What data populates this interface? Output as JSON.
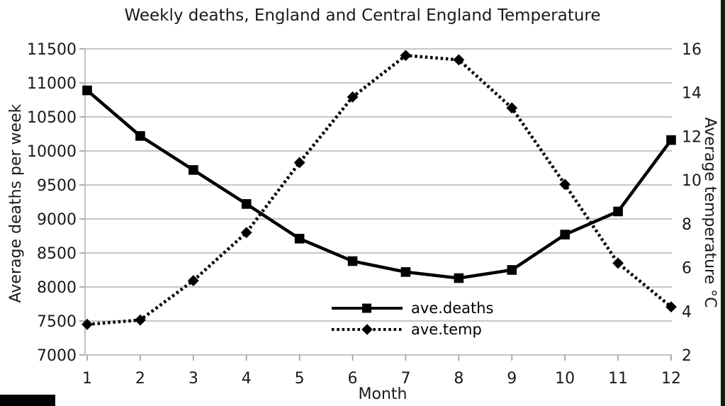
{
  "title": "Weekly deaths, England and Central England Temperature",
  "chart_data": {
    "type": "line",
    "title": "Weekly deaths, England and Central England Temperature",
    "xlabel": "Month",
    "ylabel_left": "Average deaths per week",
    "ylabel_right": "Average temperature °C",
    "x": [
      1,
      2,
      3,
      4,
      5,
      6,
      7,
      8,
      9,
      10,
      11,
      12
    ],
    "x_tick_labels": [
      "1",
      "2",
      "3",
      "4",
      "5",
      "6",
      "7",
      "8",
      "9",
      "10",
      "11",
      "12"
    ],
    "series": [
      {
        "name": "ave.deaths",
        "axis": "left",
        "line_style": "solid",
        "marker": "square",
        "color": "#000000",
        "values": [
          10890,
          10220,
          9720,
          9220,
          8710,
          8380,
          8220,
          8130,
          8250,
          8770,
          9110,
          10160
        ]
      },
      {
        "name": "ave.temp",
        "axis": "right",
        "line_style": "dotted",
        "marker": "diamond",
        "color": "#000000",
        "values": [
          3.4,
          3.6,
          5.4,
          7.6,
          10.8,
          13.8,
          15.7,
          15.5,
          13.3,
          9.8,
          6.2,
          4.2
        ]
      }
    ],
    "left_axis": {
      "min": 7000,
      "max": 11500,
      "tick_step": 500,
      "tick_labels": [
        "7000",
        "7500",
        "8000",
        "8500",
        "9000",
        "9500",
        "10000",
        "10500",
        "11000",
        "11500"
      ]
    },
    "right_axis": {
      "min": 2,
      "max": 16,
      "tick_step": 2,
      "tick_labels": [
        "2",
        "4",
        "6",
        "8",
        "10",
        "12",
        "14",
        "16"
      ]
    },
    "grid": true,
    "legend_position": "inside-bottom-center",
    "colors": {
      "grid": "#b3b3b3",
      "axis": "#9a9a9a",
      "text": "#1a1a1a"
    }
  },
  "legend": {
    "entries": [
      {
        "label": "ave.deaths"
      },
      {
        "label": "ave.temp"
      }
    ]
  },
  "decorations": {
    "corner_box_color": "#000000",
    "edge_strip_color": "#0d1f0d"
  }
}
